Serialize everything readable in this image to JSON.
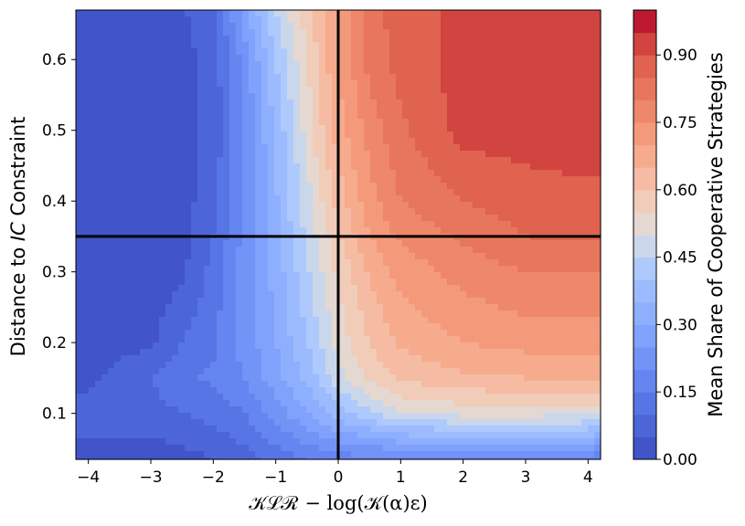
{
  "chart_data": {
    "type": "heatmap",
    "subtype": "filled-contour",
    "colormap": "coolwarm",
    "xlabel": "𝒦ℒℛ − log(𝒦(α)ε)",
    "ylabel_prefix": "Distance to ",
    "ylabel_italic": "IC",
    "ylabel_suffix": " Constraint",
    "xlim": [
      -4.2,
      4.2
    ],
    "ylim": [
      0.035,
      0.67
    ],
    "x_ticks": [
      -4,
      -3,
      -2,
      -1,
      0,
      1,
      2,
      3,
      4
    ],
    "x_tick_labels": [
      "−4",
      "−3",
      "−2",
      "−1",
      "0",
      "1",
      "2",
      "3",
      "4"
    ],
    "y_ticks": [
      0.1,
      0.2,
      0.3,
      0.4,
      0.5,
      0.6
    ],
    "y_tick_labels": [
      "0.1",
      "0.2",
      "0.3",
      "0.4",
      "0.5",
      "0.6"
    ],
    "reference_lines": {
      "vertical_x": 0,
      "horizontal_y": 0.35
    },
    "colorbar": {
      "title": "Mean Share of Cooperative Strategies",
      "range": [
        0,
        1
      ],
      "levels": 20,
      "ticks": [
        0.0,
        0.15,
        0.3,
        0.45,
        0.6,
        0.75,
        0.9
      ],
      "tick_labels": [
        "0.00",
        "0.15",
        "0.30",
        "0.45",
        "0.60",
        "0.75",
        "0.90"
      ]
    },
    "grid": false,
    "surface": {
      "description_values": "approximate mean share on grid",
      "x": [
        -4.2,
        -3,
        -2.5,
        -2,
        -1.5,
        -1,
        -0.5,
        0,
        0.5,
        1,
        2,
        3,
        4.2
      ],
      "y": [
        0.035,
        0.1,
        0.15,
        0.2,
        0.3,
        0.35,
        0.4,
        0.5,
        0.6,
        0.67
      ],
      "z": [
        [
          0.02,
          0.02,
          0.03,
          0.05,
          0.08,
          0.12,
          0.15,
          0.17,
          0.18,
          0.18,
          0.18,
          0.17,
          0.16
        ],
        [
          0.08,
          0.08,
          0.1,
          0.12,
          0.15,
          0.22,
          0.3,
          0.38,
          0.44,
          0.5,
          0.52,
          0.52,
          0.52
        ],
        [
          0.02,
          0.1,
          0.14,
          0.16,
          0.2,
          0.28,
          0.36,
          0.48,
          0.56,
          0.61,
          0.64,
          0.65,
          0.65
        ],
        [
          0.02,
          0.04,
          0.1,
          0.14,
          0.22,
          0.3,
          0.4,
          0.52,
          0.6,
          0.66,
          0.7,
          0.72,
          0.72
        ],
        [
          0.02,
          0.02,
          0.04,
          0.12,
          0.22,
          0.32,
          0.44,
          0.56,
          0.66,
          0.72,
          0.77,
          0.8,
          0.8
        ],
        [
          0.02,
          0.02,
          0.03,
          0.1,
          0.22,
          0.34,
          0.46,
          0.59,
          0.7,
          0.76,
          0.81,
          0.85,
          0.86
        ],
        [
          0.02,
          0.02,
          0.03,
          0.08,
          0.2,
          0.34,
          0.48,
          0.62,
          0.73,
          0.8,
          0.85,
          0.88,
          0.88
        ],
        [
          0.02,
          0.02,
          0.03,
          0.07,
          0.2,
          0.36,
          0.52,
          0.68,
          0.77,
          0.84,
          0.92,
          0.92,
          0.94
        ],
        [
          0.02,
          0.02,
          0.03,
          0.07,
          0.22,
          0.4,
          0.55,
          0.7,
          0.82,
          0.87,
          0.92,
          0.92,
          0.92
        ],
        [
          0.02,
          0.02,
          0.04,
          0.1,
          0.28,
          0.45,
          0.58,
          0.7,
          0.82,
          0.88,
          0.91,
          0.91,
          0.91
        ]
      ]
    }
  }
}
